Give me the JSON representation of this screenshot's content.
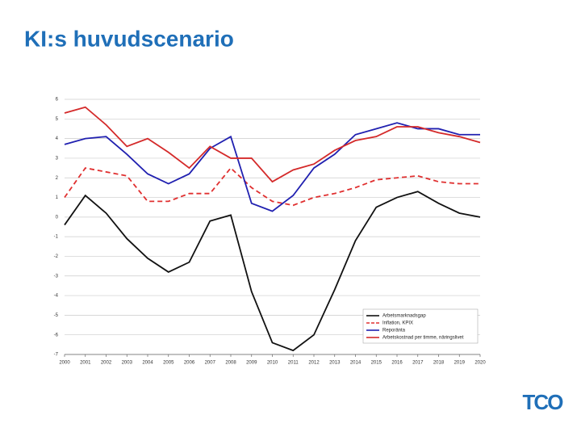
{
  "title": "KI:s huvudscenario",
  "logo": "TCO",
  "chart_data": {
    "type": "line",
    "x": [
      2000,
      2001,
      2002,
      2003,
      2004,
      2005,
      2006,
      2007,
      2008,
      2009,
      2010,
      2011,
      2012,
      2013,
      2014,
      2015,
      2016,
      2017,
      2018,
      2019,
      2020
    ],
    "xlim": [
      2000,
      2020
    ],
    "xticks": [
      2000,
      2001,
      2002,
      2003,
      2004,
      2005,
      2006,
      2007,
      2008,
      2009,
      2010,
      2011,
      2012,
      2013,
      2014,
      2015,
      2016,
      2017,
      2018,
      2019,
      2020
    ],
    "ylim": [
      -7,
      6
    ],
    "yticks": [
      -7,
      -6,
      -5,
      -4,
      -3,
      -2,
      -1,
      0,
      1,
      2,
      3,
      4,
      5,
      6
    ],
    "grid": true,
    "legend": "lower right",
    "series": [
      {
        "name": "Arbetsmarknadsgap",
        "color": "#111111",
        "dashed": false,
        "values": [
          -0.4,
          1.1,
          0.2,
          -1.1,
          -2.1,
          -2.8,
          -2.3,
          -0.2,
          0.1,
          -3.8,
          -6.4,
          -6.8,
          -6.0,
          -3.7,
          -1.2,
          0.5,
          1.0,
          1.3,
          0.7,
          0.2,
          0.0
        ]
      },
      {
        "name": "Inflation, KPIX",
        "color": "#e03030",
        "dashed": true,
        "values": [
          1.0,
          2.5,
          2.3,
          2.1,
          0.8,
          0.8,
          1.2,
          1.2,
          2.5,
          1.5,
          0.8,
          0.6,
          1.0,
          1.2,
          1.5,
          1.9,
          2.0,
          2.1,
          1.8,
          1.7,
          1.7
        ]
      },
      {
        "name": "Reporänta",
        "color": "#2020b0",
        "dashed": false,
        "values": [
          3.7,
          4.0,
          4.1,
          3.2,
          2.2,
          1.7,
          2.2,
          3.5,
          4.1,
          0.7,
          0.3,
          1.1,
          2.5,
          3.2,
          4.2,
          4.5,
          4.8,
          4.5,
          4.5,
          4.2,
          4.2
        ]
      },
      {
        "name": "Arbetskostnad per timme, näringslivet",
        "color": "#d42a2a",
        "dashed": false,
        "values": [
          5.3,
          5.6,
          4.7,
          3.6,
          4.0,
          3.3,
          2.5,
          3.6,
          3.0,
          3.0,
          1.8,
          2.4,
          2.7,
          3.4,
          3.9,
          4.1,
          4.6,
          4.6,
          4.3,
          4.1,
          3.8
        ]
      }
    ]
  }
}
